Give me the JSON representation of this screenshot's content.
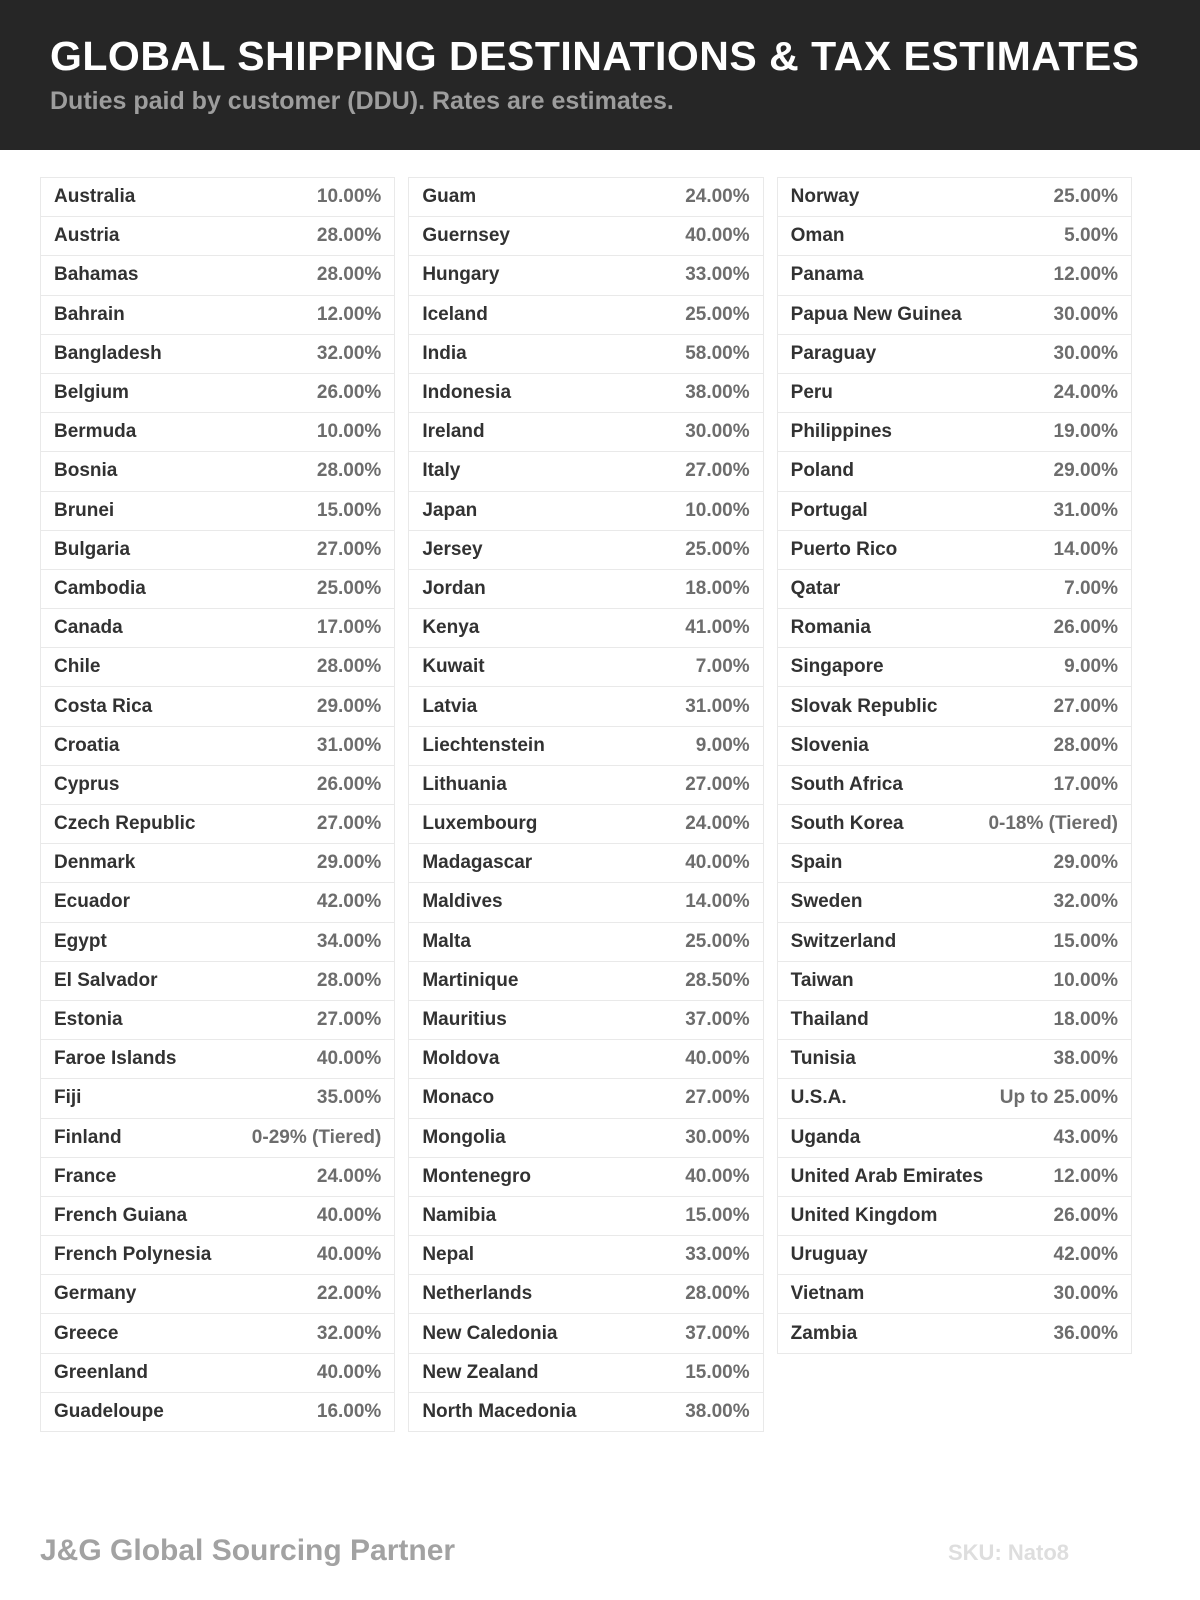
{
  "header": {
    "title": "GLOBAL SHIPPING DESTINATIONS & TAX ESTIMATES",
    "subtitle": "Duties paid by customer (DDU). Rates are estimates."
  },
  "colors": {
    "header_background": "#262626",
    "title_text": "#ffffff",
    "subtitle_text": "#9d9d9d",
    "country_text": "#323232",
    "rate_text": "#6d6d6d",
    "cell_border": "#e9e9e9",
    "page_background": "#ffffff",
    "footer_brand_text": "#a2a2a2",
    "footer_sku_text": "#dedede"
  },
  "table": {
    "columns": [
      {
        "rows": [
          {
            "country": "Australia",
            "rate": "10.00%"
          },
          {
            "country": "Austria",
            "rate": "28.00%"
          },
          {
            "country": "Bahamas",
            "rate": "28.00%"
          },
          {
            "country": "Bahrain",
            "rate": "12.00%"
          },
          {
            "country": "Bangladesh",
            "rate": "32.00%"
          },
          {
            "country": "Belgium",
            "rate": "26.00%"
          },
          {
            "country": "Bermuda",
            "rate": "10.00%"
          },
          {
            "country": "Bosnia",
            "rate": "28.00%"
          },
          {
            "country": "Brunei",
            "rate": "15.00%"
          },
          {
            "country": "Bulgaria",
            "rate": "27.00%"
          },
          {
            "country": "Cambodia",
            "rate": "25.00%"
          },
          {
            "country": "Canada",
            "rate": "17.00%"
          },
          {
            "country": "Chile",
            "rate": "28.00%"
          },
          {
            "country": "Costa Rica",
            "rate": "29.00%"
          },
          {
            "country": "Croatia",
            "rate": "31.00%"
          },
          {
            "country": "Cyprus",
            "rate": "26.00%"
          },
          {
            "country": "Czech Republic",
            "rate": "27.00%"
          },
          {
            "country": "Denmark",
            "rate": "29.00%"
          },
          {
            "country": "Ecuador",
            "rate": "42.00%"
          },
          {
            "country": "Egypt",
            "rate": "34.00%"
          },
          {
            "country": "El Salvador",
            "rate": "28.00%"
          },
          {
            "country": "Estonia",
            "rate": "27.00%"
          },
          {
            "country": "Faroe Islands",
            "rate": "40.00%"
          },
          {
            "country": "Fiji",
            "rate": "35.00%"
          },
          {
            "country": "Finland",
            "rate": "0-29% (Tiered)"
          },
          {
            "country": "France",
            "rate": "24.00%"
          },
          {
            "country": "French Guiana",
            "rate": "40.00%"
          },
          {
            "country": "French Polynesia",
            "rate": "40.00%"
          },
          {
            "country": "Germany",
            "rate": "22.00%"
          },
          {
            "country": "Greece",
            "rate": "32.00%"
          },
          {
            "country": "Greenland",
            "rate": "40.00%"
          },
          {
            "country": "Guadeloupe",
            "rate": "16.00%"
          }
        ]
      },
      {
        "rows": [
          {
            "country": "Guam",
            "rate": "24.00%"
          },
          {
            "country": "Guernsey",
            "rate": "40.00%"
          },
          {
            "country": "Hungary",
            "rate": "33.00%"
          },
          {
            "country": "Iceland",
            "rate": "25.00%"
          },
          {
            "country": "India",
            "rate": "58.00%"
          },
          {
            "country": "Indonesia",
            "rate": "38.00%"
          },
          {
            "country": "Ireland",
            "rate": "30.00%"
          },
          {
            "country": "Italy",
            "rate": "27.00%"
          },
          {
            "country": "Japan",
            "rate": "10.00%"
          },
          {
            "country": "Jersey",
            "rate": "25.00%"
          },
          {
            "country": "Jordan",
            "rate": "18.00%"
          },
          {
            "country": "Kenya",
            "rate": "41.00%"
          },
          {
            "country": "Kuwait",
            "rate": "7.00%"
          },
          {
            "country": "Latvia",
            "rate": "31.00%"
          },
          {
            "country": "Liechtenstein",
            "rate": "9.00%"
          },
          {
            "country": "Lithuania",
            "rate": "27.00%"
          },
          {
            "country": "Luxembourg",
            "rate": "24.00%"
          },
          {
            "country": "Madagascar",
            "rate": "40.00%"
          },
          {
            "country": "Maldives",
            "rate": "14.00%"
          },
          {
            "country": "Malta",
            "rate": "25.00%"
          },
          {
            "country": "Martinique",
            "rate": "28.50%"
          },
          {
            "country": "Mauritius",
            "rate": "37.00%"
          },
          {
            "country": "Moldova",
            "rate": "40.00%"
          },
          {
            "country": "Monaco",
            "rate": "27.00%"
          },
          {
            "country": "Mongolia",
            "rate": "30.00%"
          },
          {
            "country": "Montenegro",
            "rate": "40.00%"
          },
          {
            "country": "Namibia",
            "rate": "15.00%"
          },
          {
            "country": "Nepal",
            "rate": "33.00%"
          },
          {
            "country": "Netherlands",
            "rate": "28.00%"
          },
          {
            "country": "New Caledonia",
            "rate": "37.00%"
          },
          {
            "country": "New Zealand",
            "rate": "15.00%"
          },
          {
            "country": "North Macedonia",
            "rate": "38.00%"
          }
        ]
      },
      {
        "rows": [
          {
            "country": "Norway",
            "rate": "25.00%"
          },
          {
            "country": "Oman",
            "rate": "5.00%"
          },
          {
            "country": "Panama",
            "rate": "12.00%"
          },
          {
            "country": "Papua New Guinea",
            "rate": "30.00%"
          },
          {
            "country": "Paraguay",
            "rate": "30.00%"
          },
          {
            "country": "Peru",
            "rate": "24.00%"
          },
          {
            "country": "Philippines",
            "rate": "19.00%"
          },
          {
            "country": "Poland",
            "rate": "29.00%"
          },
          {
            "country": "Portugal",
            "rate": "31.00%"
          },
          {
            "country": "Puerto Rico",
            "rate": "14.00%"
          },
          {
            "country": "Qatar",
            "rate": "7.00%"
          },
          {
            "country": "Romania",
            "rate": "26.00%"
          },
          {
            "country": "Singapore",
            "rate": "9.00%"
          },
          {
            "country": "Slovak Republic",
            "rate": "27.00%"
          },
          {
            "country": "Slovenia",
            "rate": "28.00%"
          },
          {
            "country": "South Africa",
            "rate": "17.00%"
          },
          {
            "country": "South Korea",
            "rate": "0-18% (Tiered)"
          },
          {
            "country": "Spain",
            "rate": "29.00%"
          },
          {
            "country": "Sweden",
            "rate": "32.00%"
          },
          {
            "country": "Switzerland",
            "rate": "15.00%"
          },
          {
            "country": "Taiwan",
            "rate": "10.00%"
          },
          {
            "country": "Thailand",
            "rate": "18.00%"
          },
          {
            "country": "Tunisia",
            "rate": "38.00%"
          },
          {
            "country": "U.S.A.",
            "rate": "Up to 25.00%"
          },
          {
            "country": "Uganda",
            "rate": "43.00%"
          },
          {
            "country": "United Arab Emirates",
            "rate": "12.00%"
          },
          {
            "country": "United Kingdom",
            "rate": "26.00%"
          },
          {
            "country": "Uruguay",
            "rate": "42.00%"
          },
          {
            "country": "Vietnam",
            "rate": "30.00%"
          },
          {
            "country": "Zambia",
            "rate": "36.00%"
          }
        ]
      }
    ]
  },
  "footer": {
    "brand": "J&G Global Sourcing Partner",
    "sku": "SKU: Nato8"
  }
}
